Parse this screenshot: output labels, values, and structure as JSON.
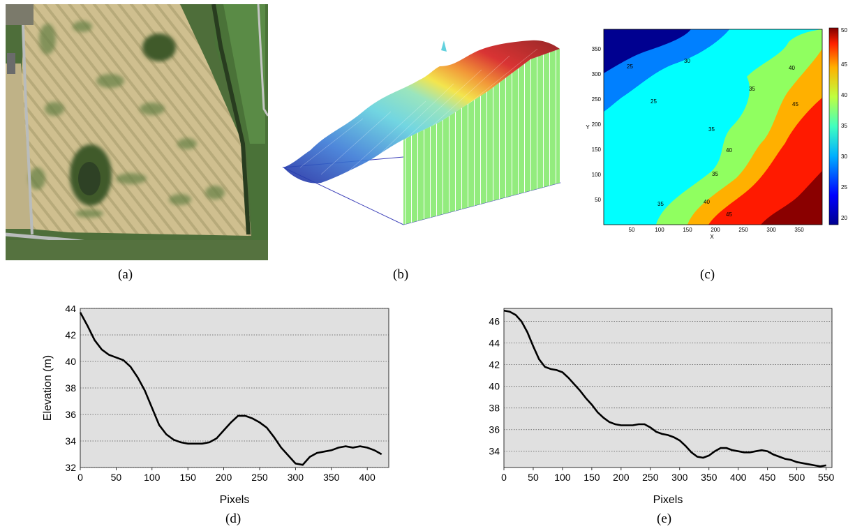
{
  "captions": {
    "a": "(a)",
    "b": "(b)",
    "c": "(c)",
    "d": "(d)",
    "e": "(e)"
  },
  "colors": {
    "field_base": "#cdbd8c",
    "field_green": "#5b7a3c",
    "road": "#b9bcbc",
    "pasture": "#476d37",
    "profile_line": "#000000",
    "plot_background": "#e0e0e0"
  },
  "panel_c": {
    "type": "contour",
    "xlabel": "X",
    "ylabel": "Y",
    "x_ticks": [
      "50",
      "100",
      "150",
      "200",
      "250",
      "300",
      "350"
    ],
    "y_ticks": [
      "50",
      "100",
      "150",
      "200",
      "250",
      "300",
      "350"
    ],
    "colorbar_ticks": [
      "20",
      "25",
      "30",
      "35",
      "40",
      "45",
      "50"
    ],
    "colorbar_range": [
      18,
      50
    ],
    "contour_labels": [
      "25",
      "25",
      "30",
      "35",
      "35",
      "35",
      "35",
      "40",
      "40",
      "40",
      "45",
      "45"
    ]
  },
  "chart_data": [
    {
      "type": "line",
      "title": "",
      "xlabel": "Pixels",
      "ylabel": "Elevation (m)",
      "xlim": [
        0,
        430
      ],
      "ylim": [
        32,
        44
      ],
      "x_ticks": [
        "0",
        "50",
        "100",
        "150",
        "200",
        "250",
        "300",
        "350",
        "400"
      ],
      "y_ticks": [
        "32",
        "34",
        "36",
        "38",
        "40",
        "42",
        "44"
      ],
      "grid": "horizontal dotted",
      "series": [
        {
          "x": [
            0,
            10,
            20,
            30,
            40,
            50,
            60,
            70,
            80,
            90,
            100,
            110,
            120,
            130,
            140,
            150,
            160,
            170,
            180,
            190,
            200,
            210,
            220,
            230,
            240,
            250,
            260,
            270,
            280,
            290,
            300,
            310,
            320,
            330,
            340,
            350,
            360,
            370,
            380,
            390,
            400,
            410,
            420
          ],
          "y": [
            43.7,
            42.7,
            41.6,
            40.9,
            40.5,
            40.3,
            40.1,
            39.6,
            38.8,
            37.8,
            36.5,
            35.2,
            34.5,
            34.1,
            33.9,
            33.8,
            33.8,
            33.8,
            33.9,
            34.2,
            34.8,
            35.4,
            35.9,
            35.9,
            35.7,
            35.4,
            35.0,
            34.3,
            33.5,
            32.9,
            32.3,
            32.2,
            32.8,
            33.1,
            33.2,
            33.3,
            33.5,
            33.6,
            33.5,
            33.6,
            33.5,
            33.3,
            33.0
          ]
        }
      ]
    },
    {
      "type": "line",
      "title": "",
      "xlabel": "Pixels",
      "ylabel": "",
      "xlim": [
        0,
        560
      ],
      "ylim": [
        32.5,
        47.2
      ],
      "x_ticks": [
        "0",
        "50",
        "100",
        "150",
        "200",
        "250",
        "300",
        "350",
        "400",
        "450",
        "500",
        "550"
      ],
      "y_ticks": [
        "34",
        "36",
        "38",
        "40",
        "42",
        "44",
        "46"
      ],
      "grid": "horizontal dotted",
      "series": [
        {
          "x": [
            0,
            10,
            20,
            30,
            40,
            50,
            60,
            70,
            80,
            90,
            100,
            110,
            120,
            130,
            140,
            150,
            160,
            170,
            180,
            190,
            200,
            210,
            220,
            230,
            240,
            250,
            260,
            270,
            280,
            290,
            300,
            310,
            320,
            330,
            340,
            350,
            360,
            370,
            380,
            390,
            400,
            410,
            420,
            430,
            440,
            450,
            460,
            470,
            480,
            490,
            500,
            510,
            520,
            530,
            540,
            550
          ],
          "y": [
            47.0,
            46.9,
            46.6,
            46.0,
            45.0,
            43.7,
            42.5,
            41.8,
            41.6,
            41.5,
            41.3,
            40.8,
            40.2,
            39.6,
            38.9,
            38.3,
            37.6,
            37.1,
            36.7,
            36.5,
            36.4,
            36.4,
            36.4,
            36.5,
            36.5,
            36.2,
            35.8,
            35.6,
            35.5,
            35.3,
            35.0,
            34.5,
            33.9,
            33.5,
            33.4,
            33.6,
            34.0,
            34.3,
            34.3,
            34.1,
            34.0,
            33.9,
            33.9,
            34.0,
            34.1,
            34.0,
            33.7,
            33.5,
            33.3,
            33.2,
            33.0,
            32.9,
            32.8,
            32.7,
            32.6,
            32.7
          ]
        }
      ]
    }
  ]
}
